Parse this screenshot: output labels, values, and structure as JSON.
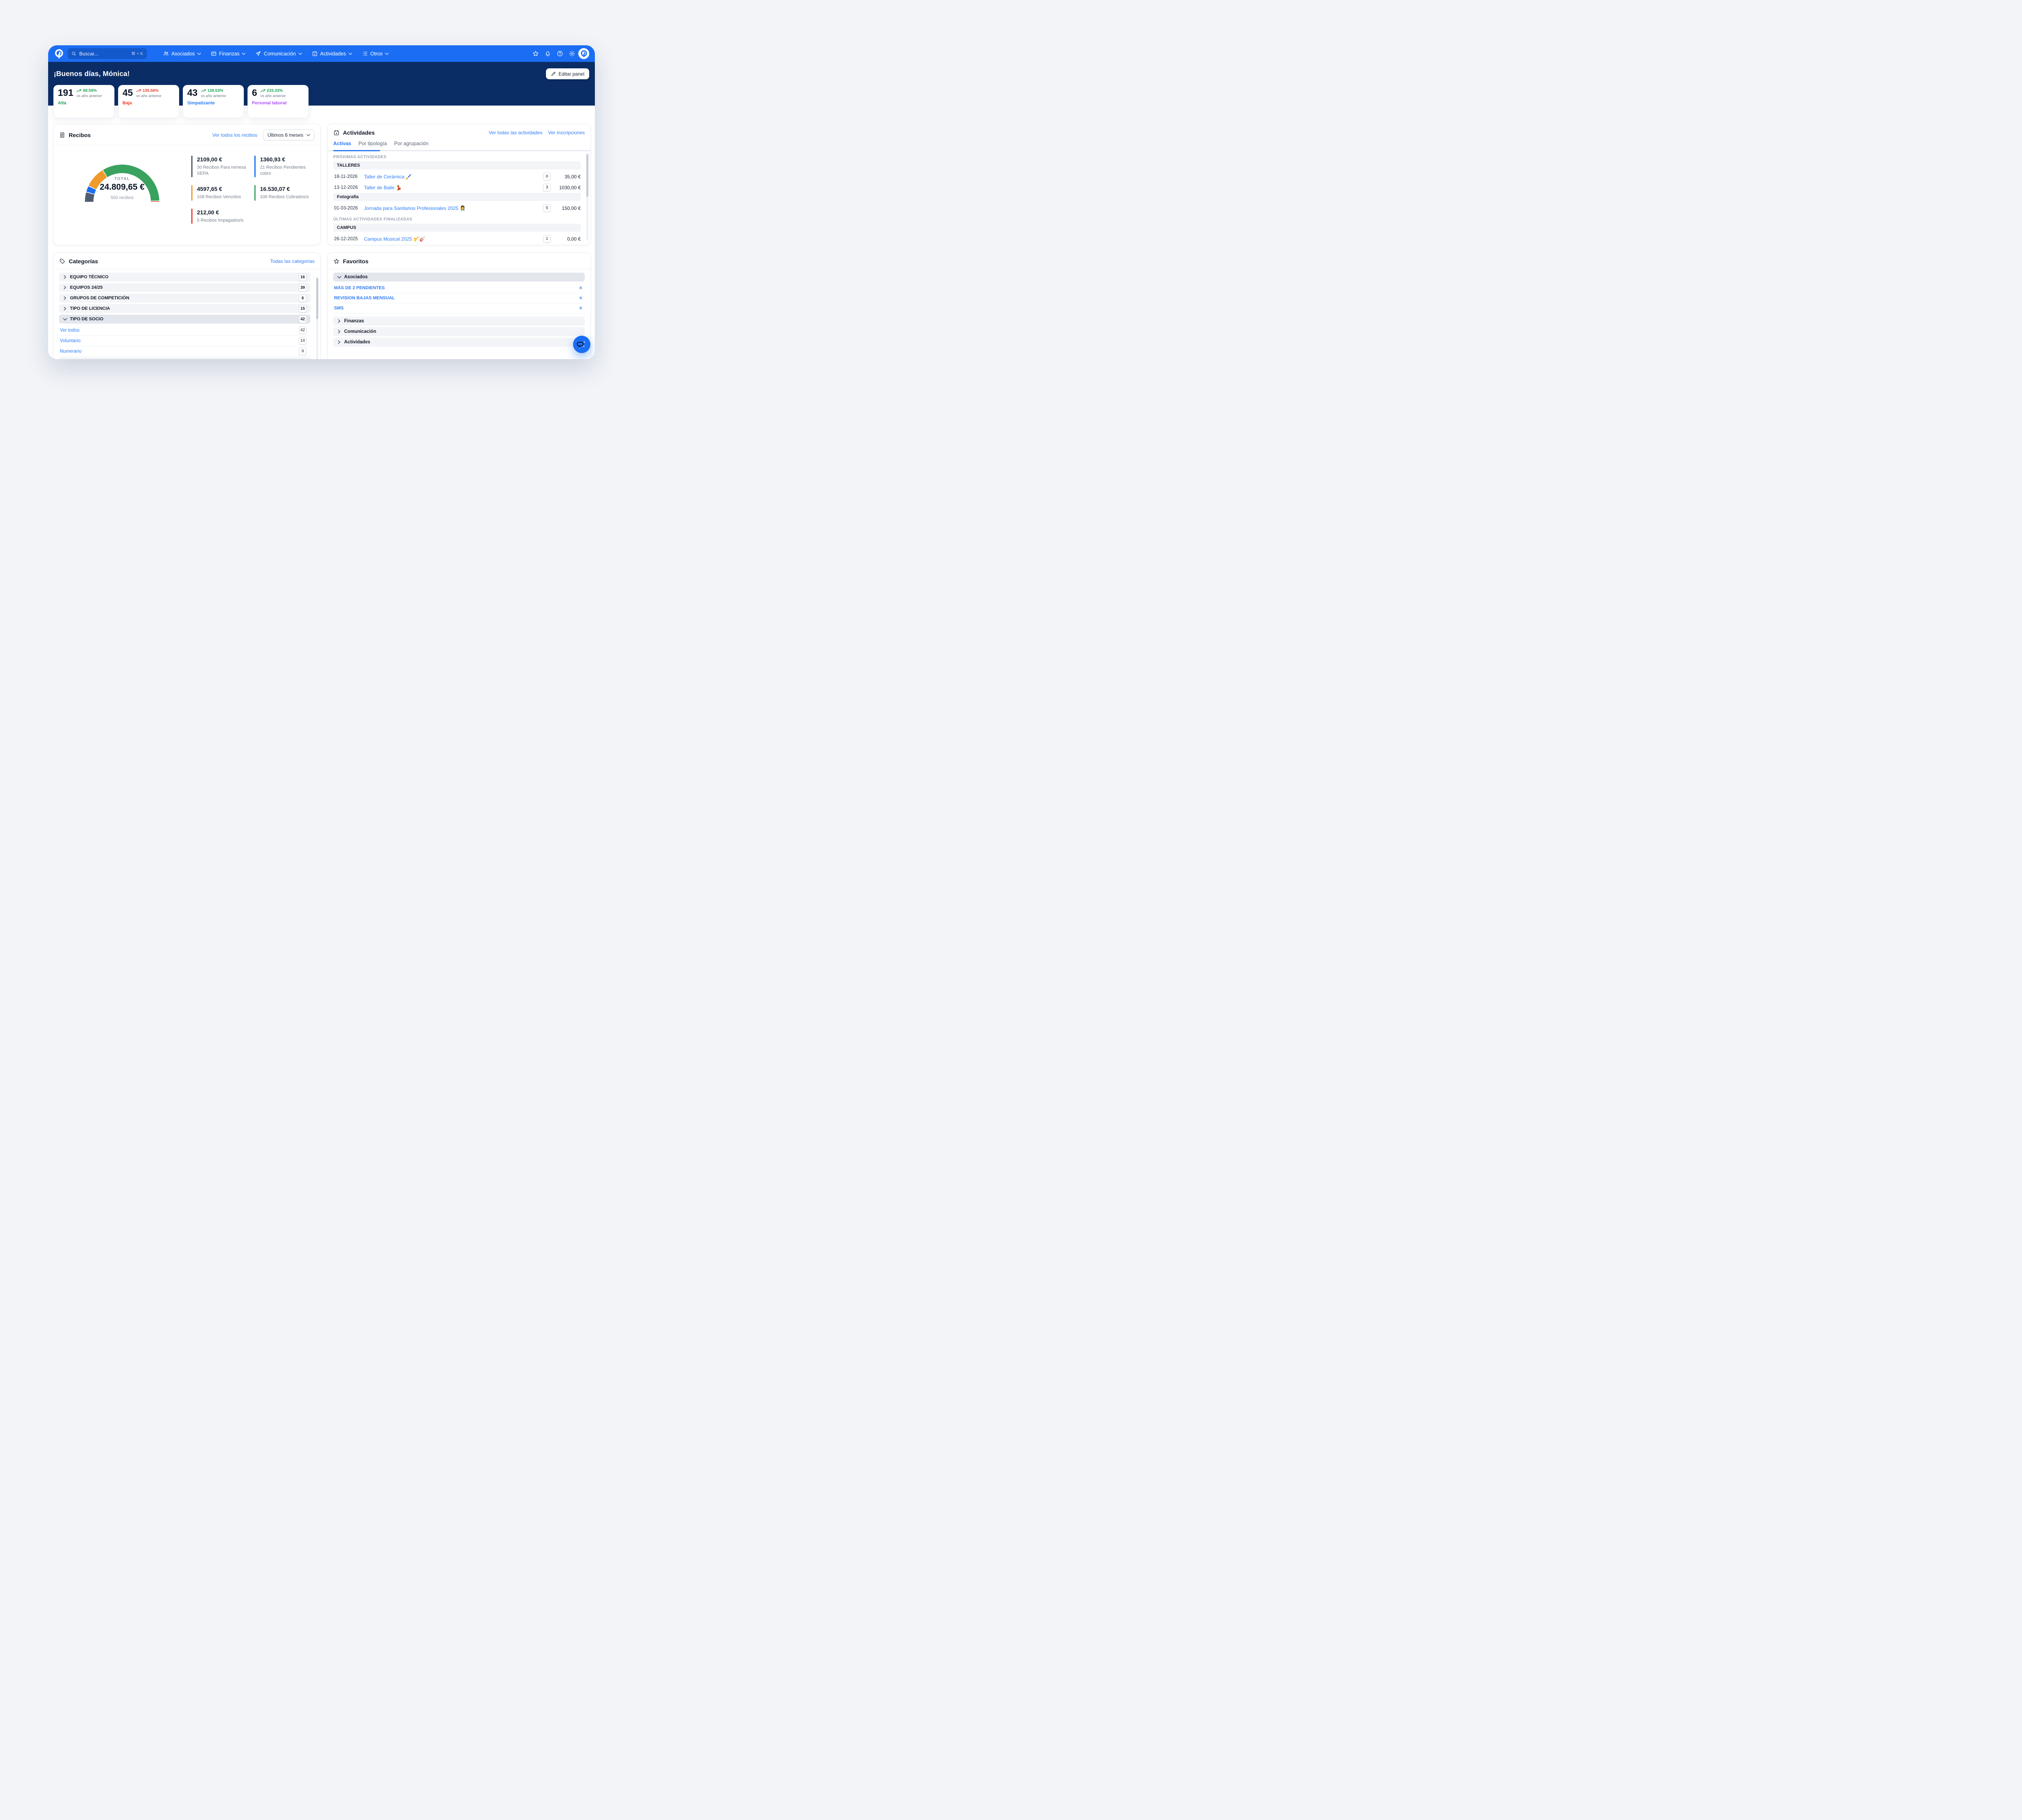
{
  "app": {
    "header": {
      "search": {
        "placeholder": "Buscar...",
        "shortcut": "⌘ + K"
      },
      "nav": [
        {
          "label": "Asociados",
          "icon": "users-icon"
        },
        {
          "label": "Finanzas",
          "icon": "finance-icon"
        },
        {
          "label": "Comunicación",
          "icon": "send-icon"
        },
        {
          "label": "Actividades",
          "icon": "calendar-icon"
        },
        {
          "label": "Otros",
          "icon": "list-icon"
        }
      ],
      "right_icons": [
        {
          "name": "favorites-star-icon",
          "icon": "star"
        },
        {
          "name": "notifications-bell-icon",
          "icon": "bell"
        },
        {
          "name": "help-icon",
          "icon": "help"
        },
        {
          "name": "settings-gear-icon",
          "icon": "gear"
        }
      ]
    },
    "hero": {
      "greeting": "¡Buenos días, Mónica!",
      "edit_button": "Editar panel"
    }
  },
  "stat_cards": [
    {
      "value": "191",
      "trend": "68.59%",
      "trend_color": "#1fa355",
      "caption": "vs año anterior",
      "label": "Alta",
      "label_color": "#1fa355"
    },
    {
      "value": "45",
      "trend": "135.56%",
      "trend_color": "#e8402d",
      "caption": "vs año anterior",
      "label": "Baja",
      "label_color": "#e8402d"
    },
    {
      "value": "43",
      "trend": "139.53%",
      "trend_color": "#1fa355",
      "caption": "vs año anterior",
      "label": "Simpatizante",
      "label_color": "#2e7cf6"
    },
    {
      "value": "6",
      "trend": "233.33%",
      "trend_color": "#1fa355",
      "caption": "vs año anterior",
      "label": "Personal laboral",
      "label_color": "#a855f7"
    }
  ],
  "recibos": {
    "title": "Recibos",
    "link": "Ver todos los recibos",
    "range": "Últimos 6 meses",
    "stats": [
      {
        "value": "2109,00 €",
        "desc": "30 Recibos Para remesa SEPA",
        "color": "#4e5d70"
      },
      {
        "value": "1360,93 €",
        "desc": "21 Recibos Pendientes cobro",
        "color": "#1b6ef3"
      },
      {
        "value": "4597,65 €",
        "desc": "108 Recibos Vencidos",
        "color": "#f09a2d"
      },
      {
        "value": "16.530,07 €",
        "desc": "336 Recibos Cobrados/s",
        "color": "#3aa25f"
      },
      {
        "value": "212,00 €",
        "desc": "5 Recibos Impagados/s",
        "color": "#e8402d"
      }
    ]
  },
  "chart_data": {
    "type": "pie",
    "shape": "semi-donut",
    "title": "TOTAL",
    "center_value": "24.809,65 €",
    "center_caption": "500 recibos",
    "total_value": 24809.65,
    "total_count": 500,
    "slices": [
      {
        "label": "Recibos Para remesa SEPA",
        "count": 30,
        "value": 2109.0,
        "color": "#4e5d70"
      },
      {
        "label": "Recibos Pendientes cobro",
        "count": 21,
        "value": 1360.93,
        "color": "#1b6ef3"
      },
      {
        "label": "Recibos Vencidos",
        "count": 108,
        "value": 4597.65,
        "color": "#f09a2d"
      },
      {
        "label": "Recibos Cobrados/s",
        "count": 336,
        "value": 16530.07,
        "color": "#3aa25f"
      },
      {
        "label": "Recibos Impagados/s",
        "count": 5,
        "value": 212.0,
        "color": "#e8402d"
      }
    ]
  },
  "actividades": {
    "title": "Actividades",
    "links": [
      "Ver todas las actividades",
      "Ver inscripciones"
    ],
    "tabs": [
      {
        "label": "Activas",
        "active": true
      },
      {
        "label": "Por tipología",
        "active": false
      },
      {
        "label": "Por agrupación",
        "active": false
      }
    ],
    "groups": [
      {
        "section_label": "PRÓXIMAS ACTIVIDADES",
        "sections": [
          {
            "header": "TALLERES",
            "rows": [
              {
                "date": "18-11-2026",
                "title": "Taller de Cerámica 🖌️",
                "badge": "0",
                "price": "35,00 €"
              },
              {
                "date": "13-12-2026",
                "title": "Taller de Baile 💃",
                "badge": "3",
                "price": "1030,00 €"
              }
            ]
          },
          {
            "header": "Fotografía",
            "rows": [
              {
                "date": "01-03-2026",
                "title": "Jornada para Sanitarios Profesionales 2025 👩‍⚕️",
                "badge": "5",
                "price": "150,00 €"
              }
            ]
          }
        ]
      },
      {
        "section_label": "ÚLTIMAS ACTIVIDADES FINALIZADAS",
        "sections": [
          {
            "header": "CAMPUS",
            "rows": [
              {
                "date": "26-12-2025",
                "title": "Campus Musical 2025 🎷🎸",
                "badge": "1",
                "price": "0,00 €"
              }
            ]
          }
        ]
      }
    ]
  },
  "categorias": {
    "title": "Categorías",
    "link": "Todas las categorías",
    "items": [
      {
        "label": "EQUIPO TÉCNICO",
        "count": "16",
        "state": "collapsed"
      },
      {
        "label": "EQUIPOS 24/25",
        "count": "39",
        "state": "collapsed"
      },
      {
        "label": "GRUPOS DE COMPETICIÓN",
        "count": "6",
        "state": "collapsed"
      },
      {
        "label": "TIPO DE LICENCIA",
        "count": "15",
        "state": "collapsed"
      },
      {
        "label": "TIPO DE SOCIO",
        "count": "42",
        "state": "expanded",
        "children": [
          {
            "label": "Ver todos",
            "count": "42"
          },
          {
            "label": "Voluntario",
            "count": "14"
          },
          {
            "label": "Numerario",
            "count": "9"
          }
        ]
      }
    ]
  },
  "favoritos": {
    "title": "Favoritos",
    "groups": [
      {
        "label": "Asociados",
        "state": "expanded",
        "items": [
          "MÁS DE 2 PENDIENTES",
          "REVISION BAJAS MENSUAL",
          "SMS"
        ]
      },
      {
        "label": "Finanzas",
        "state": "collapsed",
        "items": []
      },
      {
        "label": "Comunicación",
        "state": "collapsed",
        "items": []
      },
      {
        "label": "Actividades",
        "state": "collapsed",
        "items": []
      }
    ]
  },
  "colors": {
    "brand": "#1b6ef3",
    "hero": "#0b2d66",
    "link": "#2e7cf6"
  }
}
